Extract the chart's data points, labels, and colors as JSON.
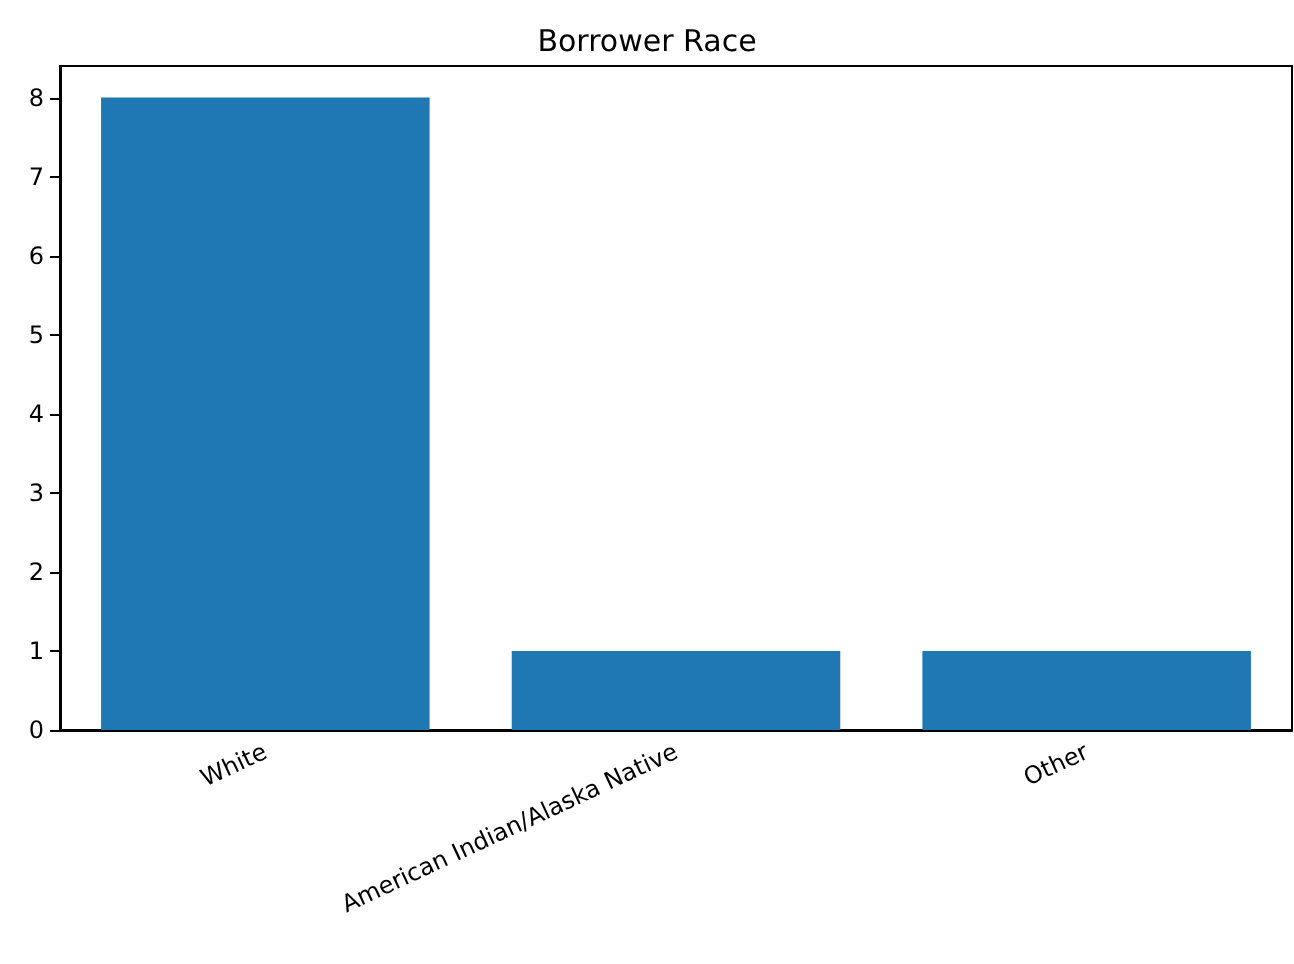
{
  "chart_data": {
    "type": "bar",
    "title": "Borrower Race",
    "categories": [
      "White",
      "American Indian/Alaska Native",
      "Other"
    ],
    "values": [
      8,
      1,
      1
    ],
    "color": "#1f77b4",
    "ylim": [
      0,
      8.4
    ],
    "yticks": [
      0,
      1,
      2,
      3,
      4,
      5,
      6,
      7,
      8
    ],
    "grid": false
  }
}
